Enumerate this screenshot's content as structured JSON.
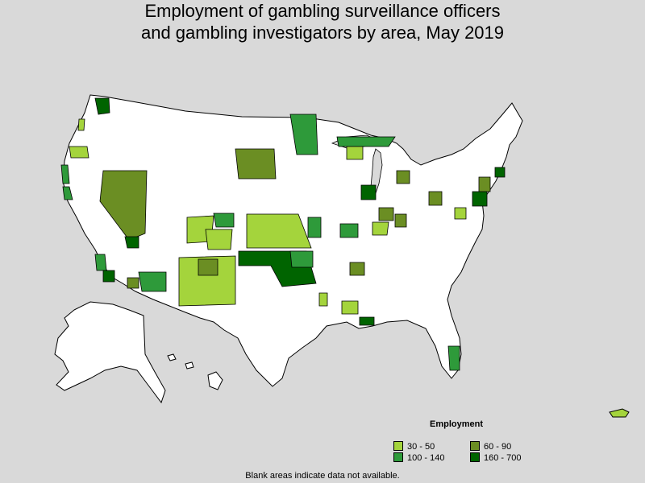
{
  "title": {
    "line1": "Employment of gambling surveillance officers",
    "line2": "and gambling investigators by area, May 2019"
  },
  "legend": {
    "title": "Employment",
    "items": [
      {
        "label": "30 - 50",
        "color": "#a4d43c"
      },
      {
        "label": "60 - 90",
        "color": "#6b8e23"
      },
      {
        "label": "100 - 140",
        "color": "#2e9a3a"
      },
      {
        "label": "160 - 700",
        "color": "#006400"
      }
    ]
  },
  "footnote": "Blank areas indicate data not available.",
  "colors": {
    "background": "#d9d9d9",
    "land": "#ffffff",
    "border": "#000000"
  }
}
